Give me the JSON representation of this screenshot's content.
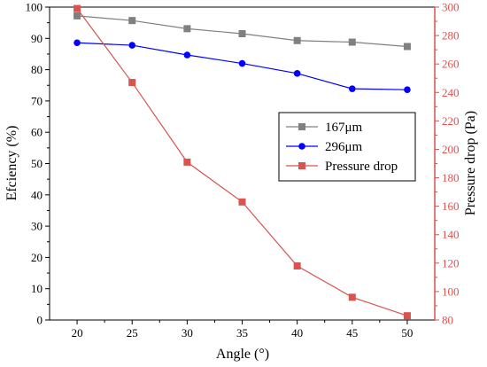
{
  "chart_data": {
    "type": "line",
    "x": [
      20,
      25,
      30,
      35,
      40,
      45,
      50
    ],
    "xlabel": "Angle (°)",
    "ylabel_left": "Efciency (%)",
    "ylabel_right": "Pressure drop (Pa)",
    "xlim": [
      17.5,
      52.5
    ],
    "ylim_left": [
      0,
      100
    ],
    "ylim_right": [
      80,
      300
    ],
    "xticks": [
      20,
      25,
      30,
      35,
      40,
      45,
      50
    ],
    "yticks_left": [
      0,
      10,
      20,
      30,
      40,
      50,
      60,
      70,
      80,
      90,
      100
    ],
    "yticks_right": [
      80,
      100,
      120,
      140,
      160,
      180,
      200,
      220,
      240,
      260,
      280,
      300
    ],
    "grid": false,
    "legend_position": "right",
    "series": [
      {
        "name": "167μm",
        "axis": "left",
        "color": "#808080",
        "marker": "square",
        "values": [
          97.2,
          95.7,
          93.1,
          91.5,
          89.3,
          88.8,
          87.4
        ]
      },
      {
        "name": "296μm",
        "axis": "left",
        "color": "#0000FF",
        "marker": "circle",
        "values": [
          88.6,
          87.8,
          84.7,
          82.0,
          78.8,
          73.9,
          73.6
        ]
      },
      {
        "name": "Pressure drop",
        "axis": "right",
        "color": "#D9534F",
        "marker": "square",
        "values": [
          299,
          247,
          191,
          163,
          118,
          96,
          83
        ]
      }
    ]
  }
}
